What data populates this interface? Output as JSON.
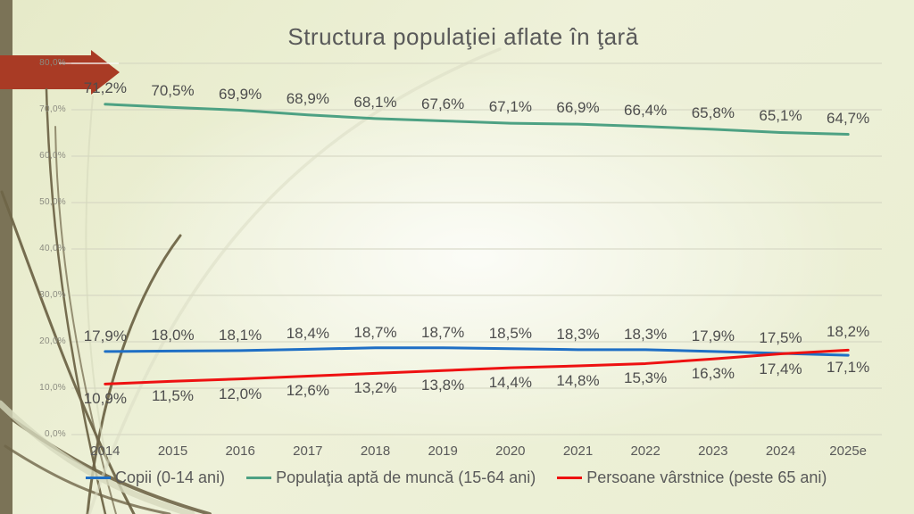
{
  "slide": {
    "title": "Structura populaţiei aflate în ţară"
  },
  "colors": {
    "background_edge": "#e9ecce",
    "background_center": "#fafbee",
    "sidebar": "#7b7357",
    "arrow": "#a93b25",
    "vine_dark": "#6f6548",
    "vine_light": "#d6d8bd",
    "gridline": "#d2d3c0",
    "title_text": "#595959",
    "axis_text": "#8b8b80",
    "label_text": "#4d4d4d"
  },
  "chart_data": {
    "type": "line",
    "title": "Structura populaţiei aflate în ţară",
    "x": [
      "2014",
      "2015",
      "2016",
      "2017",
      "2018",
      "2019",
      "2020",
      "2021",
      "2022",
      "2023",
      "2024",
      "2025e"
    ],
    "series": [
      {
        "name": "Copii (0-14 ani)",
        "color": "#1f6fc5",
        "values": [
          17.9,
          18.0,
          18.1,
          18.4,
          18.7,
          18.7,
          18.5,
          18.3,
          18.3,
          17.9,
          17.5,
          17.1
        ]
      },
      {
        "name": "Populaţia aptă de muncă (15-64 ani)",
        "color": "#4da183",
        "values": [
          71.2,
          70.5,
          69.9,
          68.9,
          68.1,
          67.6,
          67.1,
          66.9,
          66.4,
          65.8,
          65.1,
          64.7
        ]
      },
      {
        "name": "Persoane vârstnice (peste 65 ani)",
        "color": "#ee1111",
        "values": [
          10.9,
          11.5,
          12.0,
          12.6,
          13.2,
          13.8,
          14.4,
          14.8,
          15.3,
          16.3,
          17.4,
          18.2
        ]
      }
    ],
    "y_ticks": [
      "0,0%",
      "10,0%",
      "20,0%",
      "30,0%",
      "40,0%",
      "50,0%",
      "60,0%",
      "70,0%",
      "80,0%"
    ],
    "ylim": [
      0,
      80
    ],
    "grid": true,
    "legend_position": "bottom",
    "decimal_separator": ",",
    "label_suffix": "%"
  }
}
